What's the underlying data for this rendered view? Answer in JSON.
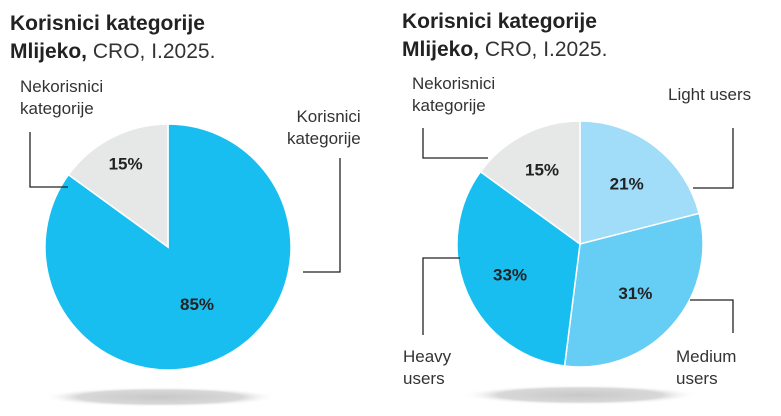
{
  "chart_data": [
    {
      "type": "pie",
      "title_bold_1": "Korisnici kategorije",
      "title_bold_2": "Mlijeko,",
      "title_rest_2": " CRO, I.2025.",
      "slices": [
        {
          "label": "Nekorisnici\nkategorije",
          "value": 15,
          "value_label": "15%",
          "color": "#e6e8e8"
        },
        {
          "label": "Korisnici\nkategorije",
          "value": 85,
          "value_label": "85%",
          "color": "#19bef1"
        }
      ]
    },
    {
      "type": "pie",
      "title_bold_1": "Korisnici kategorije",
      "title_bold_2": "Mlijeko,",
      "title_rest_2": " CRO, I.2025.",
      "slices": [
        {
          "label": "Light users",
          "value": 21,
          "value_label": "21%",
          "color": "#a1dcf8"
        },
        {
          "label": "Medium\nusers",
          "value": 31,
          "value_label": "31%",
          "color": "#66cdf5"
        },
        {
          "label": "Heavy\nusers",
          "value": 33,
          "value_label": "33%",
          "color": "#19bef1"
        },
        {
          "label": "Nekorisnici\nkategorije",
          "value": 15,
          "value_label": "15%",
          "color": "#e6e8e8"
        }
      ]
    }
  ]
}
